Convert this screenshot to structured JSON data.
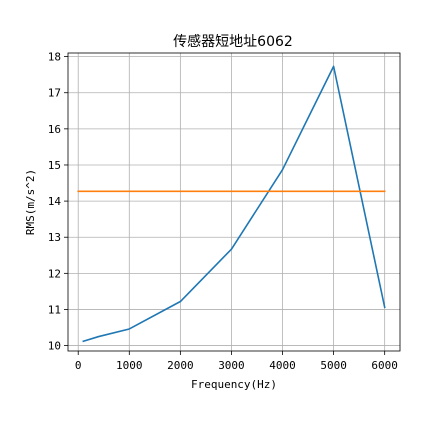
{
  "chart_data": {
    "type": "line",
    "title": "传感器短地址6062",
    "xlabel": "Frequency(Hz)",
    "ylabel": "RMS(m/s^2)",
    "xlim": [
      -200,
      6300
    ],
    "ylim": [
      9.85,
      18.1
    ],
    "xticks": [
      0,
      1000,
      2000,
      3000,
      4000,
      5000,
      6000
    ],
    "yticks": [
      10,
      11,
      12,
      13,
      14,
      15,
      16,
      17,
      18
    ],
    "grid": true,
    "series": [
      {
        "color": "#1f77b4",
        "x": [
          100,
          400,
          1000,
          2000,
          3000,
          4000,
          5000,
          6000
        ],
        "y": [
          10.12,
          10.25,
          10.46,
          11.22,
          12.67,
          14.87,
          17.73,
          11.06
        ]
      },
      {
        "color": "#ff7f0e",
        "x": [
          0,
          6000
        ],
        "y": [
          14.27,
          14.27
        ]
      }
    ]
  }
}
